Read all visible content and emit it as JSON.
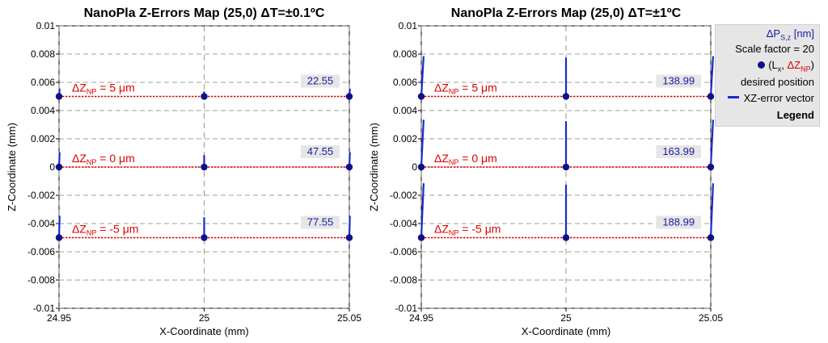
{
  "chart_data": [
    {
      "type": "scatter",
      "title": "NanoPla Z-Errors Map (25,0) ΔT=±0.1ºC",
      "xlabel": "X-Coordinate (mm)",
      "ylabel": "Z-Coordinate (mm)",
      "xlim": [
        24.95,
        25.05
      ],
      "ylim": [
        -0.01,
        0.01
      ],
      "x_ticks": [
        24.95,
        25,
        25.05
      ],
      "x_tick_labels": [
        "24.95",
        "25",
        "25.05"
      ],
      "y_ticks": [
        0.01,
        0.008,
        0.006,
        0.004,
        0.002,
        0,
        -0.002,
        -0.004,
        -0.006,
        -0.008,
        -0.01
      ],
      "y_tick_labels": [
        "0.01",
        "0.008",
        "0.006",
        "0.004",
        "0.002",
        "0",
        "-0.002",
        "-0.004",
        "-0.006",
        "-0.008",
        "-0.01"
      ],
      "grid": true,
      "rows": [
        {
          "z": 0.005,
          "label_prefix": "ΔZ",
          "label_sub": "NP",
          "label_suffix": " = 5 μm",
          "error_value": "22.55",
          "vectors": [
            [
              0.0002,
              0.0005
            ],
            [
              0,
              0.0003
            ],
            [
              0.0002,
              0.0005
            ]
          ]
        },
        {
          "z": 0.0,
          "label_prefix": "ΔZ",
          "label_sub": "NP",
          "label_suffix": " = 0 μm",
          "error_value": "47.55",
          "vectors": [
            [
              0.0002,
              0.001
            ],
            [
              0,
              0.0008
            ],
            [
              0.0002,
              0.001
            ]
          ]
        },
        {
          "z": -0.005,
          "label_prefix": "ΔZ",
          "label_sub": "NP",
          "label_suffix": " = -5 μm",
          "error_value": "77.55",
          "vectors": [
            [
              0.0002,
              0.0015
            ],
            [
              0,
              0.0014
            ],
            [
              0.0002,
              0.0015
            ]
          ]
        }
      ],
      "points_x": [
        24.95,
        25,
        25.05
      ]
    },
    {
      "type": "scatter",
      "title": "NanoPla Z-Errors Map (25,0) ΔT=±1ºC",
      "xlabel": "X-Coordinate (mm)",
      "ylabel": "Z-Coordinate (mm)",
      "xlim": [
        24.95,
        25.05
      ],
      "ylim": [
        -0.01,
        0.01
      ],
      "x_ticks": [
        24.95,
        25,
        25.05
      ],
      "x_tick_labels": [
        "24.95",
        "25",
        "25.05"
      ],
      "y_ticks": [
        0.01,
        0.008,
        0.006,
        0.004,
        0.002,
        0,
        -0.002,
        -0.004,
        -0.006,
        -0.008,
        -0.01
      ],
      "y_tick_labels": [
        "0.01",
        "0.008",
        "0.006",
        "0.004",
        "0.002",
        "0",
        "-0.002",
        "-0.004",
        "-0.006",
        "-0.008",
        "-0.01"
      ],
      "grid": true,
      "rows": [
        {
          "z": 0.005,
          "label_prefix": "ΔZ",
          "label_sub": "NP",
          "label_suffix": " = 5 μm",
          "error_value": "138.99",
          "vectors": [
            [
              0.0008,
              0.0028
            ],
            [
              0,
              0.0027
            ],
            [
              0.0008,
              0.0028
            ]
          ]
        },
        {
          "z": 0.0,
          "label_prefix": "ΔZ",
          "label_sub": "NP",
          "label_suffix": " = 0 μm",
          "error_value": "163.99",
          "vectors": [
            [
              0.0008,
              0.0033
            ],
            [
              0,
              0.0032
            ],
            [
              0.0008,
              0.0033
            ]
          ]
        },
        {
          "z": -0.005,
          "label_prefix": "ΔZ",
          "label_sub": "NP",
          "label_suffix": " = -5 μm",
          "error_value": "188.99",
          "vectors": [
            [
              0.0008,
              0.0038
            ],
            [
              0,
              0.0037
            ],
            [
              0.0008,
              0.0038
            ]
          ]
        }
      ],
      "points_x": [
        24.95,
        25,
        25.05
      ]
    }
  ],
  "legend": {
    "title_prefix": "ΔP",
    "title_sub": "S,z",
    "title_suffix": " [nm]",
    "scale": "Scale factor = 20",
    "point_open": "(L",
    "point_sub": "x",
    "point_sep": ", ",
    "point_red": "ΔZ",
    "point_red_sub": "NP",
    "point_close": ")",
    "desired": "desired position",
    "vector": "XZ-error vector",
    "caption": "Legend"
  },
  "colors": {
    "point": "#10108a",
    "vector": "#1a2ad0",
    "row_line": "#e00000",
    "label_text": "#e00000",
    "value_text": "#1a1aa8",
    "value_box": "#e6e6e6",
    "grid": "#808080"
  }
}
